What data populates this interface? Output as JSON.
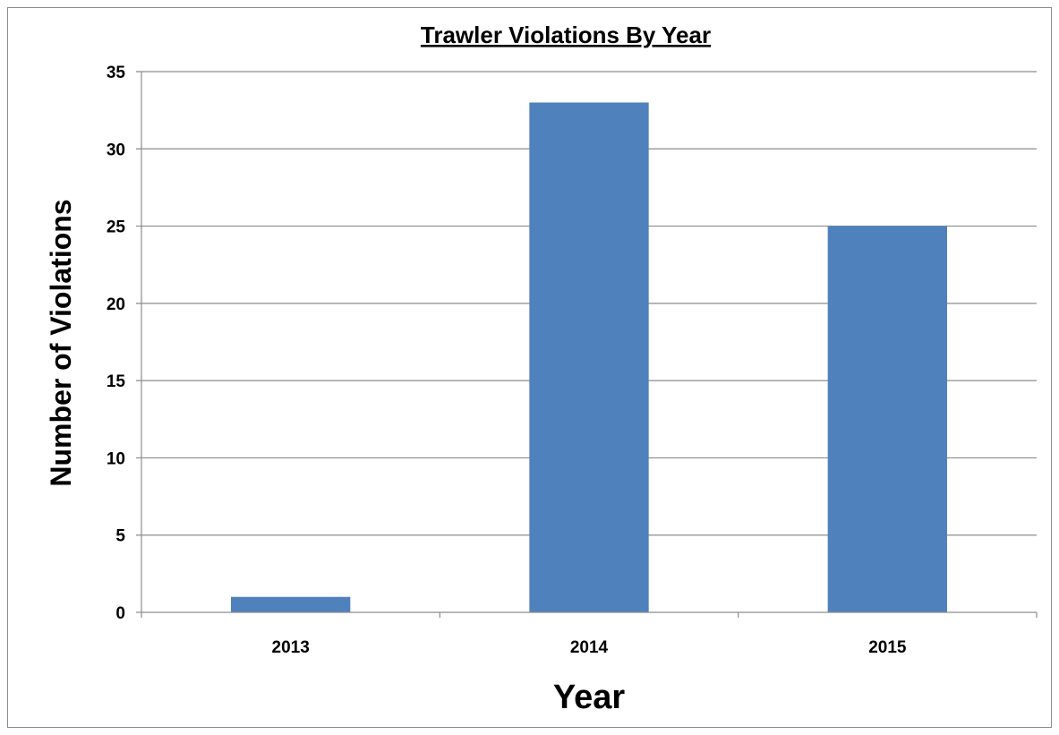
{
  "chart_data": {
    "type": "bar",
    "title": "Trawler Violations By Year",
    "xlabel": "Year",
    "ylabel": "Number of Violations",
    "categories": [
      "2013",
      "2014",
      "2015"
    ],
    "values": [
      1,
      33,
      25
    ],
    "ylim": [
      0,
      35
    ],
    "yticks": [
      "0",
      "5",
      "10",
      "15",
      "20",
      "25",
      "30",
      "35"
    ],
    "grid": true,
    "bar_color": "#4f81bd",
    "gridline_color": "#8c8c8c"
  }
}
